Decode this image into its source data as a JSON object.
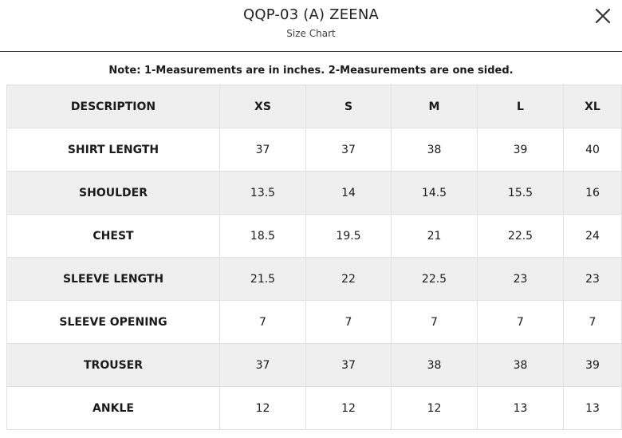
{
  "header": {
    "title": "QQP-03 (A) ZEENA",
    "subtitle": "Size Chart",
    "close_icon": "close-icon"
  },
  "note": "Note: 1-Measurements are in inches. 2-Measurements are one sided.",
  "table": {
    "columns": [
      "DESCRIPTION",
      "XS",
      "S",
      "M",
      "L",
      "XL"
    ],
    "rows": [
      {
        "label": "SHIRT LENGTH",
        "values": [
          "37",
          "37",
          "38",
          "39",
          "40"
        ]
      },
      {
        "label": "SHOULDER",
        "values": [
          "13.5",
          "14",
          "14.5",
          "15.5",
          "16"
        ]
      },
      {
        "label": "CHEST",
        "values": [
          "18.5",
          "19.5",
          "21",
          "22.5",
          "24"
        ]
      },
      {
        "label": "SLEEVE LENGTH",
        "values": [
          "21.5",
          "22",
          "22.5",
          "23",
          "23"
        ]
      },
      {
        "label": "SLEEVE OPENING",
        "values": [
          "7",
          "7",
          "7",
          "7",
          "7"
        ]
      },
      {
        "label": "TROUSER",
        "values": [
          "37",
          "37",
          "38",
          "38",
          "39"
        ]
      },
      {
        "label": "ANKLE",
        "values": [
          "12",
          "12",
          "12",
          "13",
          "13"
        ]
      }
    ]
  },
  "colors": {
    "header_row_bg": "#efefef",
    "alt_row_bg": "#efefef",
    "border": "#e0e0e0"
  }
}
